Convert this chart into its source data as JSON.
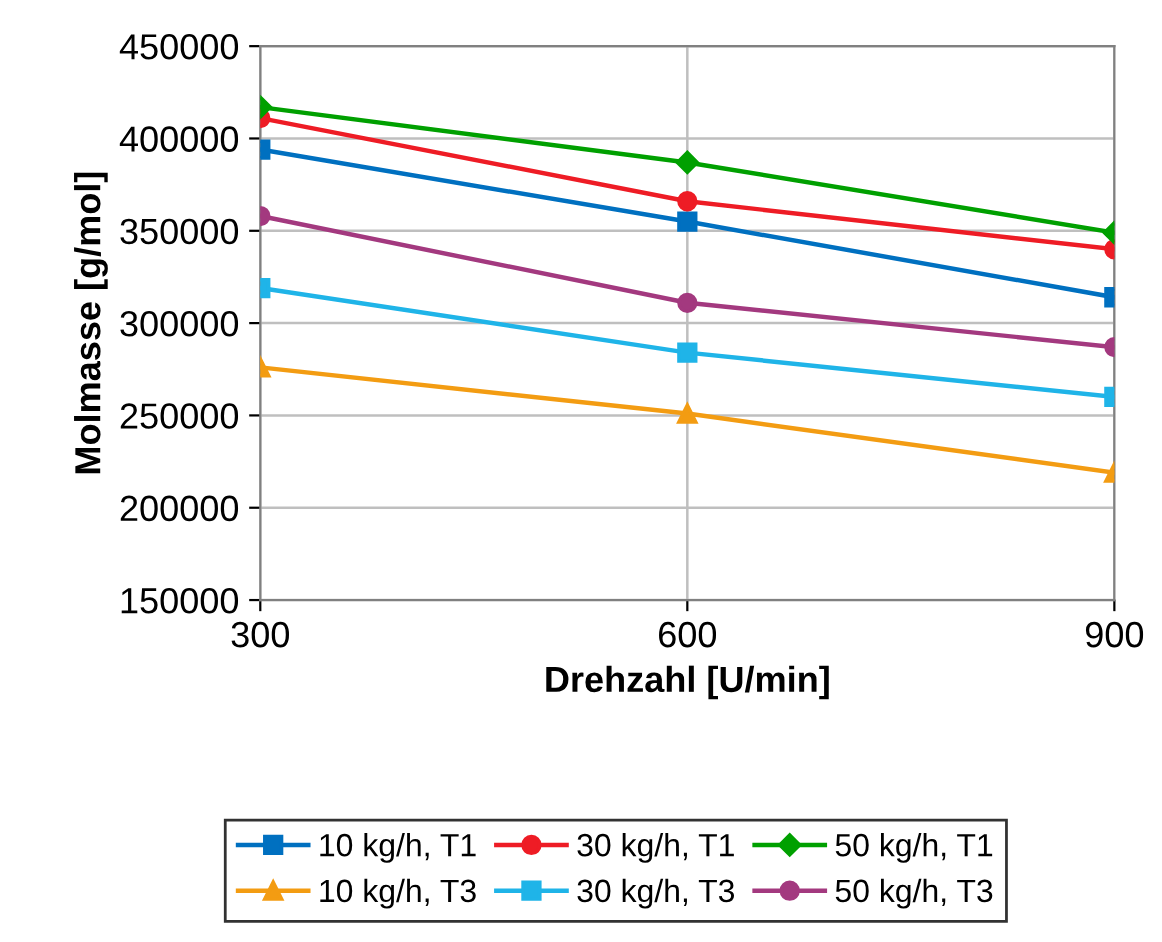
{
  "chart_data": {
    "type": "line",
    "xlabel": "Drehzahl [U/min]",
    "ylabel": "Molmasse [g/mol]",
    "x": [
      300,
      600,
      900
    ],
    "xlim": [
      300,
      900
    ],
    "xticks": [
      300,
      600,
      900
    ],
    "ylim": [
      150000,
      450000
    ],
    "yticks": [
      150000,
      200000,
      250000,
      300000,
      350000,
      400000,
      450000
    ],
    "grid": true,
    "legend": "bottom",
    "line_style": "solid",
    "series": [
      {
        "name": "10 kg/h, T1",
        "color": "#0070c0",
        "marker": "square",
        "values": [
          394000,
          355000,
          314000
        ]
      },
      {
        "name": "30 kg/h, T1",
        "color": "#ee1c25",
        "marker": "circle",
        "values": [
          411000,
          366000,
          340000
        ]
      },
      {
        "name": "50 kg/h, T1",
        "color": "#00a000",
        "marker": "diamond",
        "values": [
          417000,
          387000,
          349000
        ]
      },
      {
        "name": "10 kg/h, T3",
        "color": "#f39c12",
        "marker": "triangle",
        "values": [
          276000,
          251000,
          219000
        ]
      },
      {
        "name": "30 kg/h, T3",
        "color": "#1fb4e8",
        "marker": "square",
        "values": [
          319000,
          284000,
          260000
        ]
      },
      {
        "name": "50 kg/h, T3",
        "color": "#a3397f",
        "marker": "circle",
        "values": [
          358000,
          311000,
          287000
        ]
      }
    ]
  }
}
